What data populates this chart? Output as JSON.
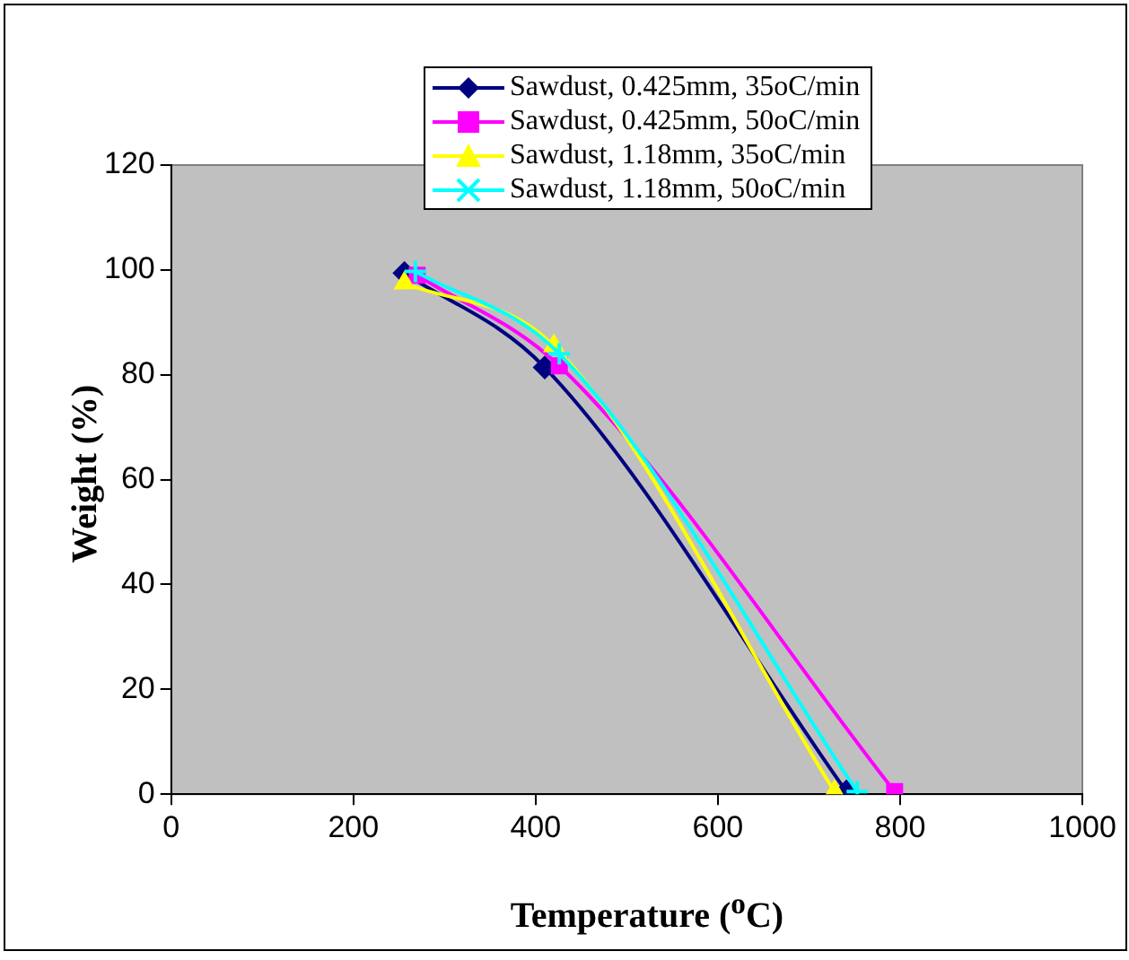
{
  "chart_data": {
    "type": "line",
    "xlabel": "Temperature ($^{o}$C)",
    "ylabel": "Weight (%)",
    "xlim": [
      0,
      1000
    ],
    "xticks": [
      0,
      200,
      400,
      600,
      800,
      1000
    ],
    "ylim": [
      0,
      120
    ],
    "yticks": [
      0,
      20,
      40,
      60,
      80,
      100,
      120
    ],
    "grid": false,
    "legend": "top",
    "line_style": "solid",
    "series": [
      {
        "name": "Sawdust, 0.425mm, 35oC/min",
        "color": "#000080",
        "marker": "diamond",
        "x": [
          256,
          410,
          741
        ],
        "values": [
          99.4,
          81.4,
          0.5
        ]
      },
      {
        "name": "Sawdust, 0.425mm, 50oC/min",
        "color": "#ff00ff",
        "marker": "square",
        "x": [
          270,
          426,
          794
        ],
        "values": [
          99,
          81.7,
          0.5
        ]
      },
      {
        "name": "Sawdust, 1.18mm, 35oC/min",
        "color": "#ffff00",
        "marker": "triangle",
        "x": [
          256,
          420,
          728
        ],
        "values": [
          97.5,
          85.5,
          0.5
        ]
      },
      {
        "name": "Sawdust, 1.18mm, 50oC/min",
        "color": "#00ffff",
        "marker": "cross",
        "x": [
          268,
          426,
          753
        ],
        "values": [
          99.7,
          84,
          0.5
        ]
      }
    ]
  }
}
